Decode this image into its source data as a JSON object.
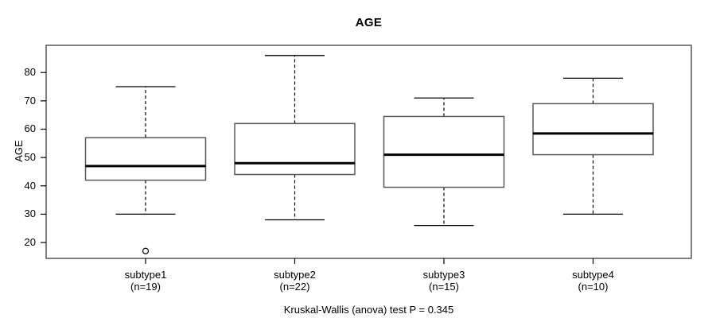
{
  "title": "AGE",
  "y_axis_label": "AGE",
  "caption": "Kruskal-Wallis (anova) test P = 0.345",
  "chart_data": {
    "type": "boxplot",
    "title": "AGE",
    "xlabel": "",
    "ylabel": "AGE",
    "ylim": [
      14.4,
      89.6
    ],
    "yticks": [
      20,
      30,
      40,
      50,
      60,
      70,
      80
    ],
    "grid": false,
    "legend": "none",
    "categories": [
      "subtype1",
      "subtype2",
      "subtype3",
      "subtype4"
    ],
    "n_labels": [
      "(n=19)",
      "(n=22)",
      "(n=15)",
      "(n=10)"
    ],
    "series": [
      {
        "name": "subtype1",
        "n": 19,
        "whisker_low": 30,
        "q1": 42,
        "median": 47,
        "q3": 57,
        "whisker_high": 75,
        "outliers": [
          17
        ]
      },
      {
        "name": "subtype2",
        "n": 22,
        "whisker_low": 28,
        "q1": 44,
        "median": 48,
        "q3": 62,
        "whisker_high": 86,
        "outliers": []
      },
      {
        "name": "subtype3",
        "n": 15,
        "whisker_low": 26,
        "q1": 39.5,
        "median": 51,
        "q3": 64.5,
        "whisker_high": 71,
        "outliers": []
      },
      {
        "name": "subtype4",
        "n": 10,
        "whisker_low": 30,
        "q1": 51,
        "median": 58.5,
        "q3": 69,
        "whisker_high": 78,
        "outliers": []
      }
    ],
    "annotation": "Kruskal-Wallis (anova) test P = 0.345",
    "colors": {
      "background": "#ffffff",
      "box_fill": "#ffffff",
      "box_border": "#5a5a5a",
      "frame": "#4a4a4a",
      "line": "#000000",
      "text": "#000000"
    }
  }
}
